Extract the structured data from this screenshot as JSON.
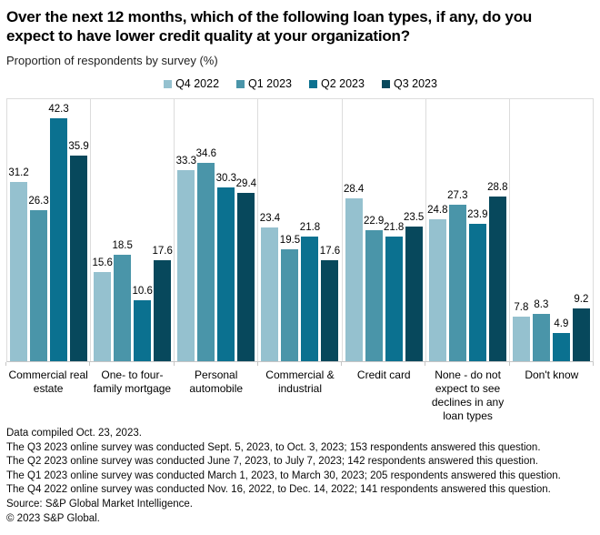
{
  "header": {
    "title_lines": [
      "Over the next 12 months, which of the following loan types, if any, do you",
      "expect to have lower credit quality at your organization?"
    ],
    "subtitle": "Proportion of respondents by survey (%)"
  },
  "colors": {
    "q4_2022": "#95c1cf",
    "q1_2023": "#4a95a9",
    "q2_2023": "#0b7190",
    "q3_2023": "#07485c",
    "grid": "#dcdcdc",
    "axis": "#c6c6c6",
    "background": "#ffffff",
    "text": "#000000"
  },
  "chart_data": {
    "type": "bar",
    "title": "Over the next 12 months, which of the following loan types, if any, do you expect to have lower credit quality at your organization?",
    "ylabel": "Proportion of respondents by survey (%)",
    "xlabel": "",
    "ylim": [
      0,
      45.7
    ],
    "grid": "vertical-group-separators",
    "legend_position": "top-center",
    "value_labels": true,
    "categories": [
      "Commercial real estate",
      "One- to four-family mortgage",
      "Personal automobile",
      "Commercial & industrial",
      "Credit card",
      "None - do not expect to see declines in any loan types",
      "Don't know"
    ],
    "series": [
      {
        "name": "Q4 2022",
        "color": "#95c1cf",
        "values": [
          31.2,
          15.6,
          33.3,
          23.4,
          28.4,
          24.8,
          7.8
        ]
      },
      {
        "name": "Q1 2023",
        "color": "#4a95a9",
        "values": [
          26.3,
          18.5,
          34.6,
          19.5,
          22.9,
          27.3,
          8.3
        ]
      },
      {
        "name": "Q2 2023",
        "color": "#0b7190",
        "values": [
          42.3,
          10.6,
          30.3,
          21.8,
          21.8,
          23.9,
          4.9
        ]
      },
      {
        "name": "Q3 2023",
        "color": "#07485c",
        "values": [
          35.9,
          17.6,
          29.4,
          17.6,
          23.5,
          28.8,
          9.2
        ]
      }
    ]
  },
  "footer": {
    "lines": [
      "Data compiled Oct. 23, 2023.",
      "The Q3 2023 online survey was conducted Sept. 5, 2023, to Oct. 3, 2023; 153 respondents answered this question.",
      "The Q2 2023 online survey was conducted June 7, 2023, to July 7, 2023; 142 respondents answered this question.",
      "The Q1 2023 online survey was conducted March 1, 2023, to March 30, 2023; 205 respondents answered this question.",
      "The Q4 2022 online survey was conducted Nov. 16, 2022, to Dec. 14, 2022; 141 respondents answered this question.",
      "Source: S&P Global Market Intelligence.",
      "© 2023 S&P Global."
    ]
  }
}
